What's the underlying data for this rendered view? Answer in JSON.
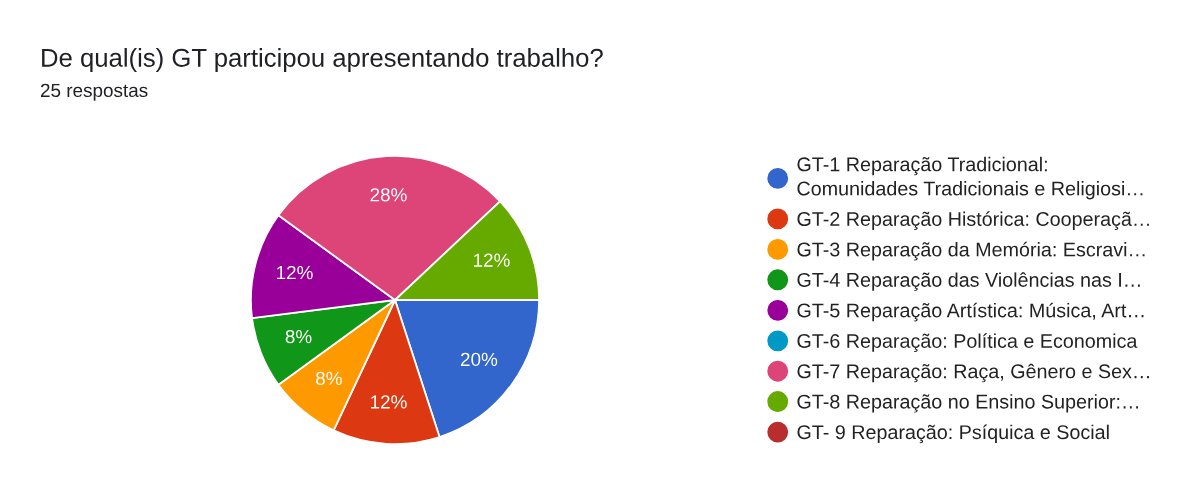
{
  "chart_data": {
    "type": "pie",
    "title": "De qual(is) GT participou apresentando trabalho?",
    "subtitle": "25 respostas",
    "categories": [
      "GT-1 Reparação Tradicional:\nComunidades Tradicionais e Religiosi…",
      "GT-2 Reparação Histórica: Cooperaçã…",
      "GT-3 Reparação da Memória: Escravi…",
      "GT-4 Reparação das Violências nas I…",
      "GT-5 Reparação Artística: Música, Art…",
      "GT-6 Reparação: Política e Economica",
      "GT-7 Reparação: Raça, Gênero e Sex…",
      "GT-8 Reparação no Ensino Superior:…",
      "GT- 9 Reparação: Psíquica e Social"
    ],
    "values": [
      20,
      12,
      8,
      8,
      12,
      0,
      28,
      12,
      0
    ],
    "value_labels": [
      "20%",
      "12%",
      "8%",
      "8%",
      "12%",
      null,
      "28%",
      "12%",
      null
    ],
    "colors": [
      "#3366cc",
      "#dc3912",
      "#ff9900",
      "#109618",
      "#990099",
      "#0099c6",
      "#dd4477",
      "#66aa00",
      "#b82e2e"
    ],
    "legend": "right"
  }
}
